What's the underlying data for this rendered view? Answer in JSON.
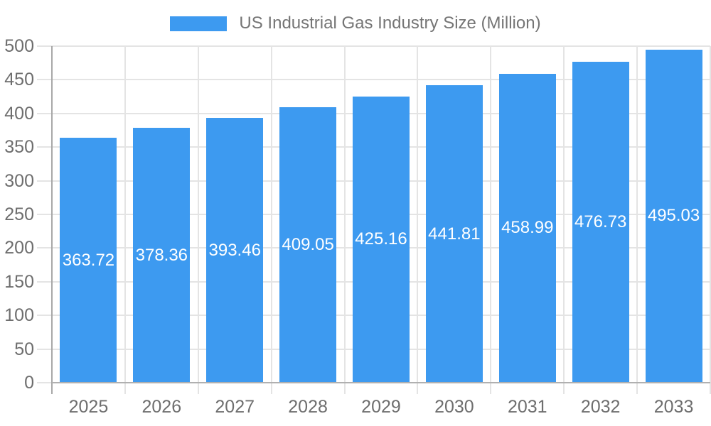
{
  "legend": {
    "label": "US Industrial Gas Industry Size (Million)"
  },
  "chart_data": {
    "type": "bar",
    "title": "US Industrial Gas Industry Size (Million)",
    "series_name": "US Industrial Gas Industry Size (Million)",
    "categories": [
      "2025",
      "2026",
      "2027",
      "2028",
      "2029",
      "2030",
      "2031",
      "2032",
      "2033"
    ],
    "values": [
      363.72,
      378.36,
      393.46,
      409.05,
      425.16,
      441.81,
      458.99,
      476.73,
      495.03
    ],
    "value_labels": [
      "363.72",
      "378.36",
      "393.46",
      "409.05",
      "425.16",
      "441.81",
      "458.99",
      "476.73",
      "495.03"
    ],
    "yticks": [
      0,
      50,
      100,
      150,
      200,
      250,
      300,
      350,
      400,
      450,
      500
    ],
    "ytick_labels": [
      "0",
      "50",
      "100",
      "150",
      "200",
      "250",
      "300",
      "350",
      "400",
      "450",
      "500"
    ],
    "ylim": [
      0,
      500
    ],
    "xlabel": "",
    "ylabel": "",
    "legend_position": "top",
    "grid": true,
    "colors": {
      "bar": "#3d9af0",
      "grid_line": "#e4e4e4",
      "axis_line_y": "#a8a8a8",
      "axis_line_x": "#b0b0b0",
      "tick_text": "#6e6e6e",
      "legend_text": "#757575",
      "value_text": "#ffffff",
      "background": "#ffffff"
    }
  }
}
